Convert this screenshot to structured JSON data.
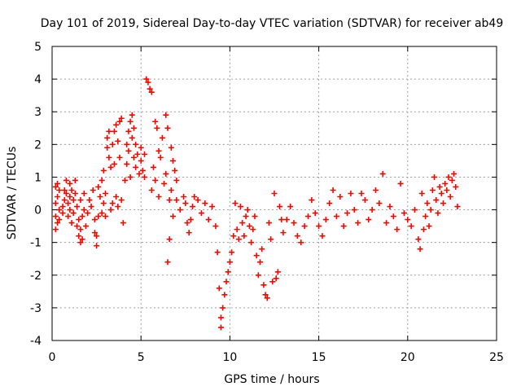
{
  "chart_data": {
    "type": "scatter",
    "title": "Day 101 of 2019, Sidereal Day-to-day VTEC variation (SDTVAR) for receiver ab49",
    "xlabel": "GPS time / hours",
    "ylabel": "SDTVAR / TECUs",
    "xlim": [
      0,
      25
    ],
    "ylim": [
      -4,
      5
    ],
    "xticks": [
      0,
      5,
      10,
      15,
      20,
      25
    ],
    "yticks": [
      -4,
      -3,
      -2,
      -1,
      0,
      1,
      2,
      3,
      4,
      5
    ],
    "xtick_labels": [
      "0",
      "5",
      "10",
      "15",
      "20",
      "25"
    ],
    "ytick_labels": [
      "-4",
      "-3",
      "-2",
      "-1",
      "0",
      "1",
      "2",
      "3",
      "4",
      "5"
    ],
    "grid": true,
    "marker": "+",
    "color": "#ff0000",
    "series": [
      {
        "name": "SDTVAR",
        "points": [
          [
            0.2,
            -0.6
          ],
          [
            0.2,
            -0.2
          ],
          [
            0.2,
            0.2
          ],
          [
            0.2,
            0.7
          ],
          [
            0.3,
            -0.4
          ],
          [
            0.3,
            0.4
          ],
          [
            0.3,
            0.8
          ],
          [
            0.4,
            0.0
          ],
          [
            0.4,
            -0.3
          ],
          [
            0.4,
            0.6
          ],
          [
            0.6,
            0.1
          ],
          [
            0.6,
            -0.1
          ],
          [
            0.7,
            0.3
          ],
          [
            0.7,
            0.6
          ],
          [
            0.8,
            0.9
          ],
          [
            0.8,
            0.5
          ],
          [
            0.9,
            0.2
          ],
          [
            0.9,
            -0.2
          ],
          [
            1.0,
            0.0
          ],
          [
            1.0,
            0.4
          ],
          [
            1.0,
            0.8
          ],
          [
            1.1,
            -0.4
          ],
          [
            1.1,
            0.6
          ],
          [
            1.2,
            0.3
          ],
          [
            1.2,
            -0.1
          ],
          [
            1.3,
            0.5
          ],
          [
            1.3,
            0.9
          ],
          [
            1.4,
            -0.5
          ],
          [
            1.4,
            0.1
          ],
          [
            1.5,
            -0.8
          ],
          [
            1.5,
            -0.3
          ],
          [
            1.6,
            -1.0
          ],
          [
            1.6,
            -0.6
          ],
          [
            1.6,
            0.3
          ],
          [
            1.7,
            -0.2
          ],
          [
            1.7,
            -0.9
          ],
          [
            1.8,
            0.0
          ],
          [
            1.8,
            0.5
          ],
          [
            1.9,
            -0.5
          ],
          [
            2.0,
            -0.1
          ],
          [
            2.1,
            0.3
          ],
          [
            2.2,
            0.1
          ],
          [
            2.3,
            0.6
          ],
          [
            2.4,
            -0.3
          ],
          [
            2.4,
            -0.7
          ],
          [
            2.5,
            -1.1
          ],
          [
            2.5,
            -0.8
          ],
          [
            2.6,
            -0.2
          ],
          [
            2.6,
            0.7
          ],
          [
            2.7,
            0.4
          ],
          [
            2.8,
            -0.1
          ],
          [
            2.8,
            0.9
          ],
          [
            2.9,
            0.2
          ],
          [
            2.9,
            1.2
          ],
          [
            3.0,
            -0.2
          ],
          [
            3.0,
            0.5
          ],
          [
            3.1,
            2.2
          ],
          [
            3.1,
            1.9
          ],
          [
            3.2,
            1.6
          ],
          [
            3.2,
            2.4
          ],
          [
            3.3,
            1.3
          ],
          [
            3.3,
            0.0
          ],
          [
            3.4,
            2.0
          ],
          [
            3.4,
            0.2
          ],
          [
            3.5,
            2.4
          ],
          [
            3.5,
            1.4
          ],
          [
            3.6,
            2.6
          ],
          [
            3.6,
            0.4
          ],
          [
            3.7,
            2.1
          ],
          [
            3.7,
            0.1
          ],
          [
            3.8,
            2.7
          ],
          [
            3.8,
            1.6
          ],
          [
            3.9,
            2.8
          ],
          [
            3.9,
            0.3
          ],
          [
            4.0,
            -0.4
          ],
          [
            4.1,
            0.9
          ],
          [
            4.2,
            1.4
          ],
          [
            4.2,
            2.0
          ],
          [
            4.3,
            2.4
          ],
          [
            4.3,
            1.8
          ],
          [
            4.4,
            2.7
          ],
          [
            4.4,
            1.0
          ],
          [
            4.5,
            2.9
          ],
          [
            4.5,
            2.2
          ],
          [
            4.6,
            2.5
          ],
          [
            4.6,
            1.6
          ],
          [
            4.7,
            2.0
          ],
          [
            4.7,
            1.3
          ],
          [
            4.8,
            1.7
          ],
          [
            4.9,
            1.1
          ],
          [
            5.0,
            1.5
          ],
          [
            5.0,
            1.9
          ],
          [
            5.1,
            1.2
          ],
          [
            5.2,
            1.0
          ],
          [
            5.2,
            1.7
          ],
          [
            5.3,
            4.0
          ],
          [
            5.4,
            3.9
          ],
          [
            5.5,
            3.7
          ],
          [
            5.6,
            3.6
          ],
          [
            5.6,
            0.6
          ],
          [
            5.7,
            1.3
          ],
          [
            5.8,
            0.9
          ],
          [
            5.8,
            2.7
          ],
          [
            5.9,
            2.5
          ],
          [
            6.0,
            1.8
          ],
          [
            6.0,
            0.4
          ],
          [
            6.1,
            1.6
          ],
          [
            6.2,
            2.2
          ],
          [
            6.3,
            0.8
          ],
          [
            6.4,
            2.9
          ],
          [
            6.4,
            1.1
          ],
          [
            6.5,
            2.5
          ],
          [
            6.5,
            -1.6
          ],
          [
            6.6,
            -0.9
          ],
          [
            6.6,
            0.3
          ],
          [
            6.7,
            1.9
          ],
          [
            6.7,
            0.6
          ],
          [
            6.8,
            1.5
          ],
          [
            6.8,
            -0.2
          ],
          [
            6.9,
            1.2
          ],
          [
            7.0,
            0.9
          ],
          [
            7.0,
            0.3
          ],
          [
            7.2,
            0.0
          ],
          [
            7.4,
            0.4
          ],
          [
            7.5,
            0.2
          ],
          [
            7.6,
            -0.4
          ],
          [
            7.7,
            -0.7
          ],
          [
            7.8,
            -0.3
          ],
          [
            7.9,
            0.1
          ],
          [
            8.0,
            0.4
          ],
          [
            8.2,
            0.3
          ],
          [
            8.4,
            -0.1
          ],
          [
            8.6,
            0.2
          ],
          [
            8.8,
            -0.3
          ],
          [
            9.0,
            0.1
          ],
          [
            9.2,
            -0.5
          ],
          [
            9.3,
            -1.3
          ],
          [
            9.4,
            -2.4
          ],
          [
            9.5,
            -3.3
          ],
          [
            9.5,
            -3.6
          ],
          [
            9.6,
            -3.0
          ],
          [
            9.7,
            -2.6
          ],
          [
            9.8,
            -2.2
          ],
          [
            9.9,
            -1.9
          ],
          [
            10.0,
            -1.6
          ],
          [
            10.1,
            -1.3
          ],
          [
            10.2,
            -0.8
          ],
          [
            10.3,
            0.2
          ],
          [
            10.4,
            -0.6
          ],
          [
            10.5,
            -0.9
          ],
          [
            10.6,
            0.1
          ],
          [
            10.7,
            -0.4
          ],
          [
            10.8,
            -0.8
          ],
          [
            10.9,
            -0.2
          ],
          [
            11.0,
            0.0
          ],
          [
            11.1,
            -0.5
          ],
          [
            11.2,
            -1.0
          ],
          [
            11.3,
            -0.6
          ],
          [
            11.4,
            -0.2
          ],
          [
            11.5,
            -1.4
          ],
          [
            11.6,
            -2.0
          ],
          [
            11.7,
            -1.6
          ],
          [
            11.8,
            -1.2
          ],
          [
            11.9,
            -2.3
          ],
          [
            12.0,
            -2.6
          ],
          [
            12.1,
            -2.7
          ],
          [
            12.2,
            -0.4
          ],
          [
            12.3,
            -0.9
          ],
          [
            12.4,
            -2.2
          ],
          [
            12.5,
            0.5
          ],
          [
            12.6,
            -2.1
          ],
          [
            12.7,
            -1.9
          ],
          [
            12.8,
            0.1
          ],
          [
            12.9,
            -0.3
          ],
          [
            13.0,
            -0.7
          ],
          [
            13.2,
            -0.3
          ],
          [
            13.4,
            0.1
          ],
          [
            13.6,
            -0.4
          ],
          [
            13.8,
            -0.8
          ],
          [
            14.0,
            -1.0
          ],
          [
            14.2,
            -0.5
          ],
          [
            14.4,
            -0.2
          ],
          [
            14.6,
            0.3
          ],
          [
            14.8,
            -0.1
          ],
          [
            15.0,
            -0.5
          ],
          [
            15.2,
            -0.8
          ],
          [
            15.4,
            -0.3
          ],
          [
            15.6,
            0.2
          ],
          [
            15.8,
            0.6
          ],
          [
            16.0,
            -0.2
          ],
          [
            16.2,
            0.4
          ],
          [
            16.4,
            -0.5
          ],
          [
            16.6,
            -0.1
          ],
          [
            16.8,
            0.5
          ],
          [
            17.0,
            0.0
          ],
          [
            17.2,
            -0.4
          ],
          [
            17.4,
            0.5
          ],
          [
            17.6,
            0.3
          ],
          [
            17.8,
            -0.3
          ],
          [
            18.0,
            0.0
          ],
          [
            18.2,
            0.6
          ],
          [
            18.4,
            0.2
          ],
          [
            18.6,
            1.1
          ],
          [
            18.8,
            -0.4
          ],
          [
            19.0,
            0.1
          ],
          [
            19.2,
            -0.2
          ],
          [
            19.4,
            -0.6
          ],
          [
            19.6,
            0.8
          ],
          [
            19.8,
            -0.1
          ],
          [
            20.0,
            -0.3
          ],
          [
            20.2,
            -0.5
          ],
          [
            20.4,
            0.0
          ],
          [
            20.6,
            -0.9
          ],
          [
            20.7,
            -1.2
          ],
          [
            20.8,
            0.5
          ],
          [
            20.9,
            -0.6
          ],
          [
            21.0,
            -0.2
          ],
          [
            21.1,
            0.2
          ],
          [
            21.2,
            -0.5
          ],
          [
            21.3,
            0.0
          ],
          [
            21.4,
            0.6
          ],
          [
            21.5,
            1.0
          ],
          [
            21.6,
            0.3
          ],
          [
            21.7,
            -0.1
          ],
          [
            21.8,
            0.7
          ],
          [
            21.9,
            0.5
          ],
          [
            22.0,
            0.2
          ],
          [
            22.1,
            0.8
          ],
          [
            22.2,
            0.6
          ],
          [
            22.3,
            1.0
          ],
          [
            22.4,
            0.4
          ],
          [
            22.5,
            0.9
          ],
          [
            22.6,
            1.1
          ],
          [
            22.7,
            0.7
          ],
          [
            22.8,
            0.1
          ]
        ]
      }
    ]
  }
}
